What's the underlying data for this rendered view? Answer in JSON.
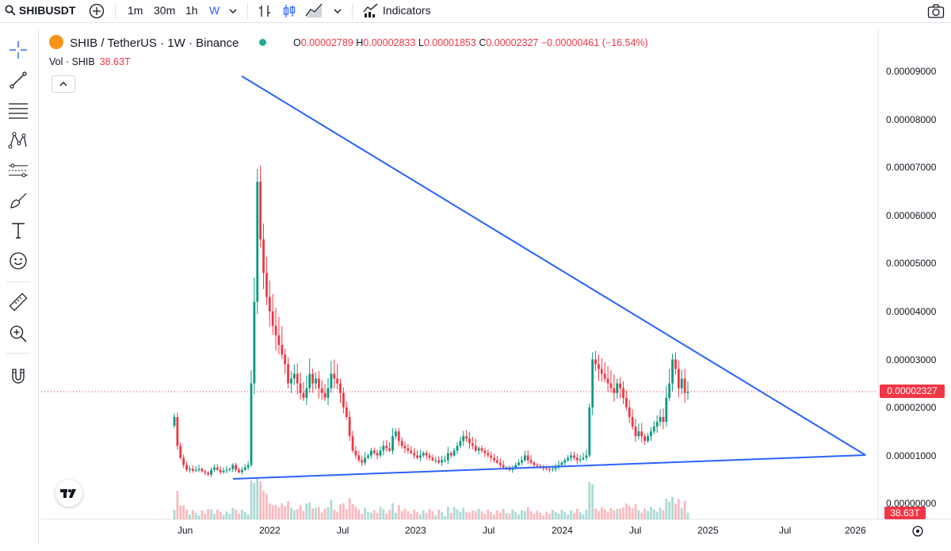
{
  "toolbar": {
    "symbol": "SHIBUSDT",
    "intervals": [
      "1m",
      "30m",
      "1h",
      "W"
    ],
    "active_interval": "W",
    "indicators_label": "Indicators",
    "icons": [
      "search-icon",
      "add-symbol-icon",
      "chevron-down-icon",
      "bar-chart-icon",
      "candles-icon",
      "area-chart-icon",
      "indicators-icon",
      "camera-icon"
    ]
  },
  "sidebar": {
    "tools": [
      "crosshair-icon",
      "trendline-icon",
      "fib-lines-icon",
      "pattern-icon",
      "prediction-icon",
      "brush-icon",
      "text-icon",
      "emoji-icon",
      "ruler-icon",
      "zoom-in-icon",
      "magnet-icon"
    ]
  },
  "legend": {
    "title": "SHIB / TetherUS · 1W · Binance",
    "open_label": "O",
    "open": "0.00002789",
    "high_label": "H",
    "high": "0.00002833",
    "low_label": "L",
    "low": "0.00001853",
    "close_label": "C",
    "close": "0.00002327",
    "change": "−0.00000461 (−16.54%)",
    "status_color": "#22ab94"
  },
  "volume": {
    "label": "Vol · SHIB",
    "value": "38.63T"
  },
  "price_axis": {
    "ticks": [
      "0.00009000",
      "0.00008000",
      "0.00007000",
      "0.00006000",
      "0.00005000",
      "0.00004000",
      "0.00003000",
      "0.00002000",
      "0.00001000",
      "0.00000000"
    ],
    "current_price": "0.00002327",
    "volume_badge": "38.63T"
  },
  "time_axis": {
    "labels": [
      "Jun",
      "2022",
      "Jul",
      "2023",
      "Jul",
      "2024",
      "Jul",
      "2025",
      "Jul",
      "2026"
    ]
  },
  "colors": {
    "up": "#089981",
    "down": "#f23645",
    "trendline": "#2962ff",
    "background": "#ffffff"
  },
  "chart_data": {
    "type": "candlestick",
    "symbol": "SHIB / TetherUS",
    "interval": "1W",
    "exchange": "Binance",
    "ylim": [
      0,
      9e-05
    ],
    "weekly_close": [
      1.8e-05,
      1.2e-05,
      9.5e-06,
      8e-06,
      7e-06,
      7.2e-06,
      6.8e-06,
      7e-06,
      7.2e-06,
      6.7e-06,
      6.4e-06,
      6e-06,
      7e-06,
      7.5e-06,
      7e-06,
      6.5e-06,
      6.8e-06,
      7e-06,
      7.2e-06,
      8e-06,
      7e-06,
      6.5e-06,
      7e-06,
      7.5e-06,
      8e-06,
      2.5e-05,
      4.2e-05,
      6.7e-05,
      5.5e-05,
      4.8e-05,
      4.3e-05,
      4e-05,
      3.7e-05,
      3.5e-05,
      3.3e-05,
      3.1e-05,
      2.9e-05,
      2.5e-05,
      2.6e-05,
      2.7e-05,
      2.5e-05,
      2.3e-05,
      2.2e-05,
      2.4e-05,
      2.7e-05,
      2.5e-05,
      2.6e-05,
      2.4e-05,
      2.3e-05,
      2.2e-05,
      2.4e-05,
      2.7e-05,
      2.6e-05,
      2.5e-05,
      2.3e-05,
      2e-05,
      1.8e-05,
      1.4e-05,
      1.1e-05,
      1e-05,
      9e-06,
      8.5e-06,
      9.5e-06,
      1e-05,
      1.1e-05,
      1.05e-05,
      1e-05,
      1.1e-05,
      1.2e-05,
      1.15e-05,
      1.1e-05,
      1.4e-05,
      1.5e-05,
      1.3e-05,
      1.2e-05,
      1.15e-05,
      1.1e-05,
      1.05e-05,
      1e-05,
      9.5e-06,
      1e-05,
      1.05e-05,
      1e-05,
      9.5e-06,
      9e-06,
      9e-06,
      8.5e-06,
      9e-06,
      9e-06,
      1.05e-05,
      1e-05,
      1.1e-05,
      1.2e-05,
      1.3e-05,
      1.4e-05,
      1.35e-05,
      1.25e-05,
      1.2e-05,
      1.1e-05,
      1.15e-05,
      1.1e-05,
      1.05e-05,
      1e-05,
      9.5e-06,
      9e-06,
      8.5e-06,
      8e-06,
      7.5e-06,
      7.5e-06,
      7e-06,
      7.5e-06,
      8e-06,
      8.5e-06,
      9e-06,
      1e-05,
      9e-06,
      8.5e-06,
      8e-06,
      7.8e-06,
      7.5e-06,
      7.3e-06,
      7.2e-06,
      7e-06,
      7.2e-06,
      7.5e-06,
      8e-06,
      8.5e-06,
      9e-06,
      9.5e-06,
      1e-05,
      9.5e-06,
      9e-06,
      9.2e-06,
      9.5e-06,
      1e-05,
      2e-05,
      3e-05,
      2.9e-05,
      2.8e-05,
      2.7e-05,
      2.6e-05,
      2.5e-05,
      2.4e-05,
      2.3e-05,
      2.5e-05,
      2.4e-05,
      2.2e-05,
      2e-05,
      1.8e-05,
      1.6e-05,
      1.4e-05,
      1.5e-05,
      1.4e-05,
      1.3e-05,
      1.4e-05,
      1.5e-05,
      1.6e-05,
      1.7e-05,
      1.8e-05,
      1.7e-05,
      2.2e-05,
      2.5e-05,
      3e-05,
      2.8e-05,
      2.4e-05,
      2.6e-05,
      2.3e-05,
      2.33e-05
    ],
    "resistance_line": {
      "from": [
        8.85e-05
      ],
      "to": [
        9.8e-06
      ]
    },
    "support_line": {
      "from": [
        5.2e-06
      ],
      "to": [
        9.8e-06
      ]
    },
    "current_price": 2.327e-05,
    "x_ticks": [
      "Jun",
      "2022",
      "Jul",
      "2023",
      "Jul",
      "2024",
      "Jul",
      "2025",
      "Jul",
      "2026"
    ]
  }
}
